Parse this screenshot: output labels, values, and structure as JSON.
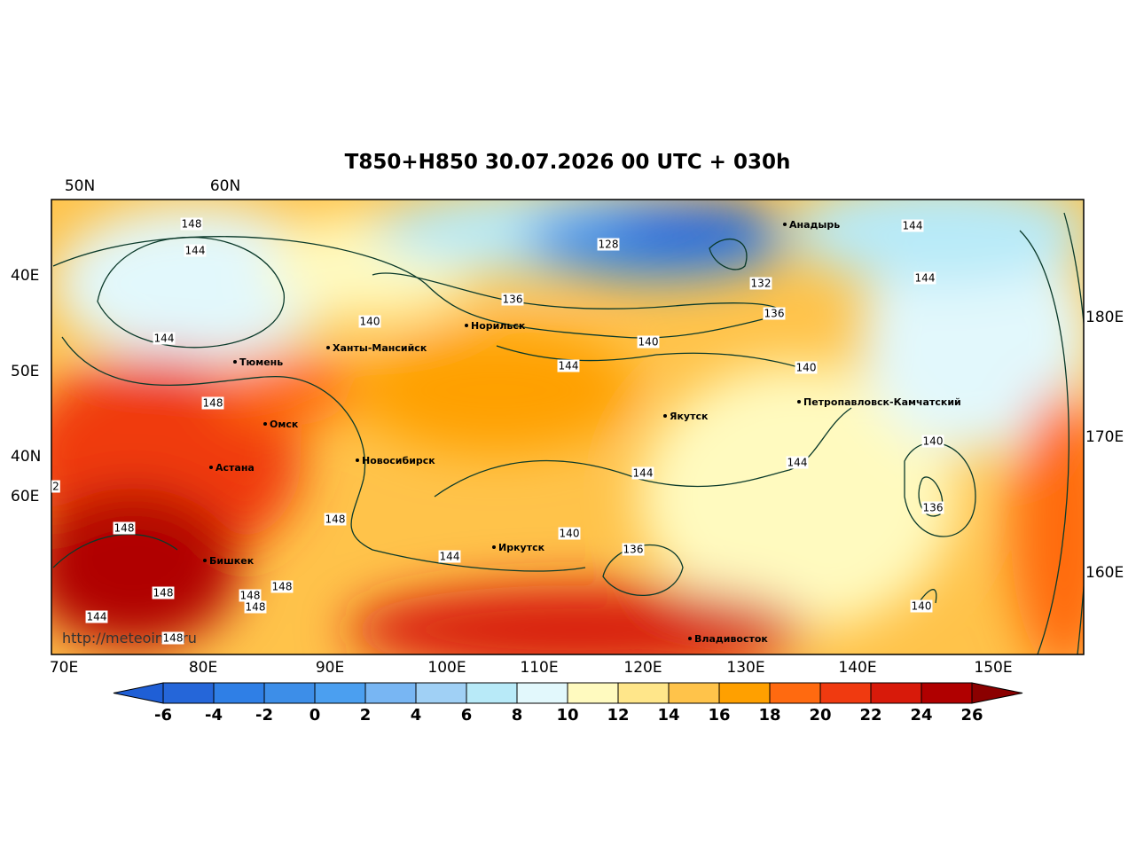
{
  "title": "T850+H850 30.07.2026 00 UTC + 030h",
  "lon_labels": [
    "70E",
    "80E",
    "90E",
    "100E",
    "110E",
    "120E",
    "130E",
    "140E",
    "150E"
  ],
  "left_labels": [
    "50N",
    "60N",
    "40E",
    "50E",
    "40N",
    "60E"
  ],
  "right_labels": [
    "180E",
    "170E",
    "160E"
  ],
  "cities": [
    "Анадырь",
    "Норильск",
    "Ханты-Мансийск",
    "Тюмень",
    "Омск",
    "Астана",
    "Новосибирск",
    "Якутск",
    "Петропавловск-Камчатский",
    "Иркутск",
    "Бишкек",
    "Владивосток"
  ],
  "contour_labels": [
    148,
    144,
    144,
    148,
    140,
    136,
    128,
    132,
    136,
    140,
    144,
    140,
    144,
    144,
    140,
    144,
    144,
    136,
    140,
    136,
    144,
    148,
    148,
    148,
    148,
    148,
    148,
    144,
    148,
    140,
    2
  ],
  "watermark": "http://meteoinfo.ru",
  "colorbar": {
    "ticks": [
      -6,
      -4,
      -2,
      0,
      2,
      4,
      6,
      8,
      10,
      12,
      14,
      16,
      18,
      20,
      22,
      24,
      26
    ],
    "colors": [
      "#1f5fd6",
      "#2566d9",
      "#2f7fe6",
      "#3d8ee8",
      "#4b9ff0",
      "#78b6f3",
      "#a0d0f5",
      "#b8eaf8",
      "#e2f8fc",
      "#fffabf",
      "#ffe68a",
      "#ffc34a",
      "#ffa000",
      "#ff6a10",
      "#f03a10",
      "#d81a0a",
      "#b00000",
      "#8b0000"
    ]
  }
}
